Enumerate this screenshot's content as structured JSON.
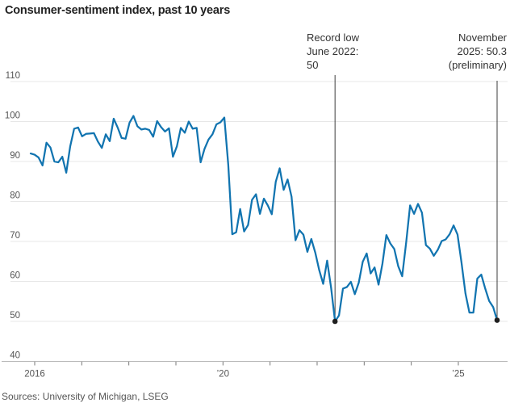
{
  "header": {
    "title": "Consumer-sentiment index, past 10 years"
  },
  "annotations": {
    "record_low": {
      "lines": [
        "Record low",
        "June 2022:",
        "50"
      ],
      "month": "June 2022",
      "value": 50,
      "month_index": 77
    },
    "latest": {
      "lines": [
        "November",
        "2025: 50.3",
        "(preliminary)"
      ],
      "month": "November 2025",
      "value": 50.3,
      "month_index": 118
    }
  },
  "footer": {
    "source": "Sources: University of Michigan, LSEG"
  },
  "chart_data": {
    "type": "line",
    "title": "Consumer-sentiment index, past 10 years",
    "xlabel": "",
    "ylabel": "",
    "frequency": "monthly",
    "x_start": "2016-01",
    "x_end": "2025-11",
    "ylim": [
      40,
      110
    ],
    "y_ticks": [
      110,
      100,
      90,
      80,
      70,
      60,
      50,
      40
    ],
    "x_tick_years": [
      2016,
      2017,
      2018,
      2019,
      2020,
      2021,
      2022,
      2023,
      2024,
      2025
    ],
    "x_tick_label_map": {
      "2016": "2016",
      "2020": "’20",
      "2025": "’25"
    },
    "grid": "horizontal",
    "legend": "none",
    "colors": {
      "line": "#1174b0",
      "grid": "#e7e7e7",
      "axis": "#b5b5b5",
      "tick": "#777777",
      "tick_text": "#555555",
      "annotation_line": "#3c3c3c",
      "dot": "#1f1f1f"
    },
    "series": [
      {
        "name": "Consumer-sentiment index",
        "values": [
          92.0,
          91.7,
          91.0,
          89.0,
          94.7,
          93.5,
          90.0,
          89.8,
          91.2,
          87.2,
          93.8,
          98.2,
          98.5,
          96.3,
          96.9,
          97.0,
          97.1,
          95.0,
          93.4,
          96.8,
          95.1,
          100.7,
          98.5,
          95.9,
          95.7,
          99.7,
          101.4,
          98.8,
          98.0,
          98.2,
          97.9,
          96.2,
          100.1,
          98.6,
          97.5,
          98.3,
          91.2,
          93.8,
          98.4,
          97.2,
          100.0,
          98.2,
          98.4,
          89.8,
          93.2,
          95.5,
          96.8,
          99.3,
          99.8,
          101.0,
          89.1,
          71.8,
          72.3,
          78.1,
          72.5,
          74.1,
          80.4,
          81.8,
          76.9,
          80.7,
          79.0,
          76.8,
          84.9,
          88.3,
          82.9,
          85.5,
          81.2,
          70.3,
          72.8,
          71.7,
          67.4,
          70.6,
          67.2,
          62.8,
          59.4,
          65.2,
          58.4,
          50.0,
          51.5,
          58.2,
          58.6,
          59.9,
          56.8,
          59.7,
          64.9,
          67.0,
          62.0,
          63.5,
          59.2,
          64.4,
          71.6,
          69.5,
          68.1,
          63.8,
          61.3,
          69.7,
          79.0,
          76.9,
          79.4,
          77.2,
          69.1,
          68.2,
          66.4,
          67.9,
          70.1,
          70.5,
          71.8,
          74.0,
          71.7,
          64.7,
          57.0,
          52.2,
          52.2,
          60.7,
          61.7,
          58.2,
          55.1,
          53.6,
          50.3
        ]
      }
    ]
  }
}
